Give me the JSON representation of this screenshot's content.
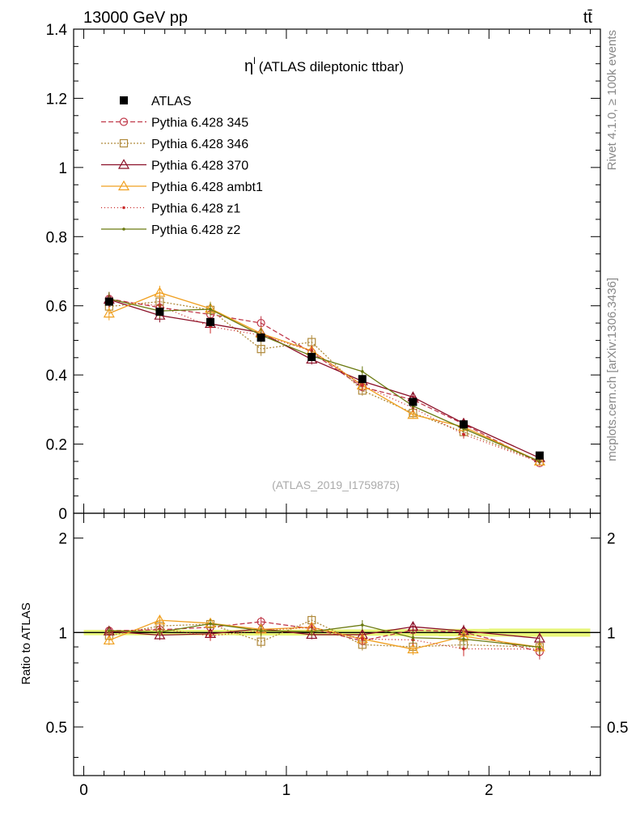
{
  "header": {
    "energy_label": "13000 GeV pp",
    "process_label": "tt̄"
  },
  "side_labels": {
    "rivet": "Rivet 4.1.0, ≥ 100k events",
    "mcplots": "mcplots.cern.ch [arXiv:1306.3436]"
  },
  "chart_data": {
    "type": "line",
    "title_symbol": "η",
    "title_superscript": "l",
    "title_text": "(ATLAS dileptonic ttbar)",
    "watermark": "(ATLAS_2019_I1759875)",
    "xlim": [
      -0.05,
      2.55
    ],
    "ylim": [
      0,
      1.4
    ],
    "ratio_ylim": [
      0.35,
      2.4
    ],
    "ratio_ylabel": "Ratio to ATLAS",
    "x_ticks": [
      0,
      1,
      2
    ],
    "x_tick_labels": [
      "0",
      "1",
      "2"
    ],
    "y_ticks": [
      0,
      0.2,
      0.4,
      0.6,
      0.8,
      1,
      1.2,
      1.4
    ],
    "y_tick_labels": [
      "0",
      "0.2",
      "0.4",
      "0.6",
      "0.8",
      "1",
      "1.2",
      "1.4"
    ],
    "ratio_ticks": [
      0.5,
      1,
      2
    ],
    "ratio_tick_labels": [
      "0.5",
      "1",
      "2"
    ],
    "bin_edges": [
      0,
      0.25,
      0.5,
      0.75,
      1.0,
      1.25,
      1.5,
      1.75,
      2.0,
      2.5
    ],
    "x": [
      0.125,
      0.375,
      0.625,
      0.875,
      1.125,
      1.375,
      1.625,
      1.875,
      2.25
    ],
    "data": {
      "name": "ATLAS",
      "color": "#000000",
      "values": [
        0.612,
        0.583,
        0.553,
        0.508,
        0.452,
        0.388,
        0.322,
        0.257,
        0.167
      ],
      "errors": [
        0.012,
        0.012,
        0.011,
        0.011,
        0.01,
        0.009,
        0.008,
        0.007,
        0.005
      ]
    },
    "series": [
      {
        "name": "Pythia 6.428 345",
        "color": "#c0394a",
        "dash": "6,3",
        "marker": "circle-open",
        "values": [
          0.62,
          0.595,
          0.575,
          0.55,
          0.465,
          0.365,
          0.328,
          0.258,
          0.145
        ],
        "errors": [
          0.02,
          0.02,
          0.02,
          0.02,
          0.015,
          0.015,
          0.012,
          0.012,
          0.008
        ]
      },
      {
        "name": "Pythia 6.428 346",
        "color": "#b08a3c",
        "dash": "2,2",
        "marker": "square-open",
        "values": [
          0.598,
          0.612,
          0.588,
          0.475,
          0.495,
          0.355,
          0.29,
          0.235,
          0.15
        ],
        "errors": [
          0.02,
          0.02,
          0.02,
          0.02,
          0.02,
          0.015,
          0.012,
          0.012,
          0.008
        ]
      },
      {
        "name": "Pythia 6.428 370",
        "color": "#8b1028",
        "dash": "",
        "marker": "triangle-open",
        "values": [
          0.618,
          0.572,
          0.548,
          0.522,
          0.445,
          0.382,
          0.336,
          0.26,
          0.16
        ],
        "errors": [
          0.02,
          0.02,
          0.02,
          0.02,
          0.015,
          0.015,
          0.012,
          0.012,
          0.008
        ]
      },
      {
        "name": "Pythia 6.428 ambt1",
        "color": "#f0a020",
        "dash": "",
        "marker": "triangle-open",
        "values": [
          0.578,
          0.638,
          0.592,
          0.52,
          0.47,
          0.37,
          0.285,
          0.25,
          0.15
        ],
        "errors": [
          0.02,
          0.02,
          0.02,
          0.02,
          0.015,
          0.015,
          0.012,
          0.012,
          0.008
        ]
      },
      {
        "name": "Pythia 6.428 z1",
        "color": "#c82828",
        "dash": "1,3",
        "marker": "dot",
        "values": [
          0.615,
          0.6,
          0.54,
          0.515,
          0.47,
          0.37,
          0.305,
          0.228,
          0.148
        ],
        "errors": [
          0.02,
          0.02,
          0.02,
          0.02,
          0.015,
          0.015,
          0.012,
          0.012,
          0.008
        ]
      },
      {
        "name": "Pythia 6.428 z2",
        "color": "#6b7a10",
        "dash": "",
        "marker": "dot",
        "values": [
          0.62,
          0.585,
          0.59,
          0.515,
          0.455,
          0.41,
          0.31,
          0.245,
          0.15
        ],
        "errors": [
          0.02,
          0.02,
          0.02,
          0.02,
          0.015,
          0.015,
          0.012,
          0.012,
          0.008
        ]
      }
    ]
  }
}
